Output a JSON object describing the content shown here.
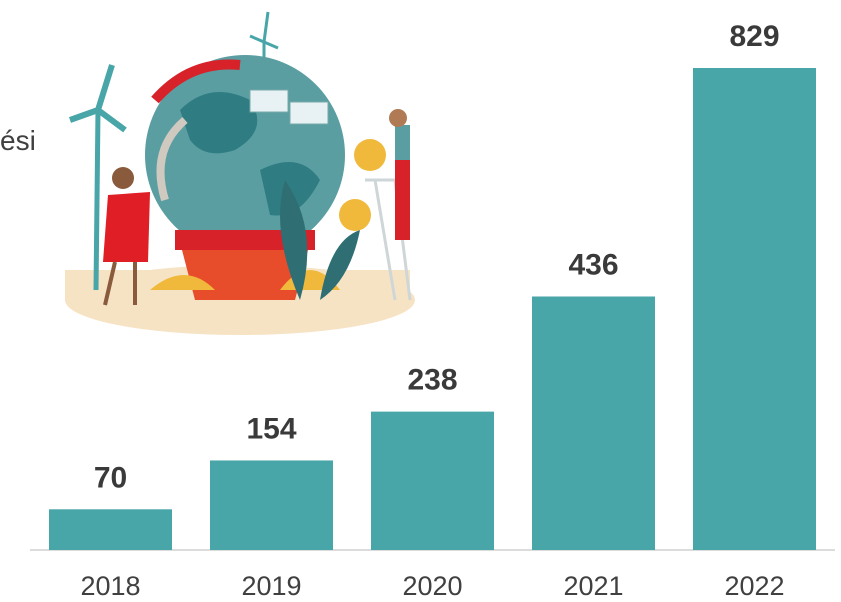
{
  "chart_data": {
    "type": "bar",
    "annotation": "ési",
    "categories": [
      "2018",
      "2019",
      "2020",
      "2021",
      "2022"
    ],
    "values": [
      70,
      154,
      238,
      436,
      829
    ],
    "color": "#48a5a8"
  }
}
